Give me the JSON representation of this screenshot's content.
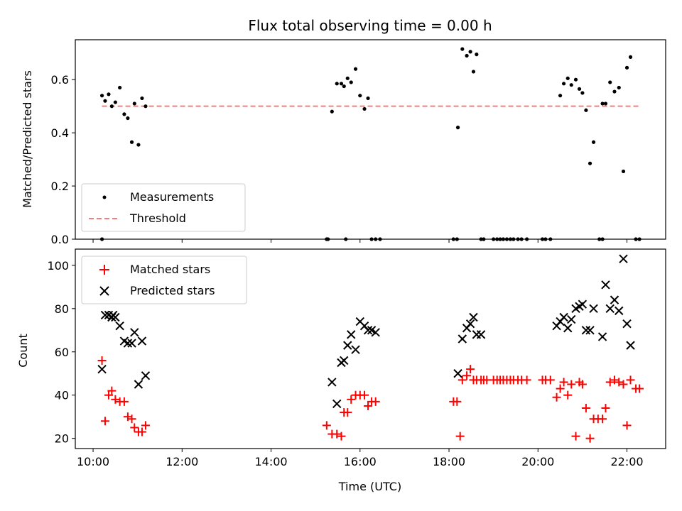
{
  "chart_data": {
    "title": "Flux total observing time = 0.00 h",
    "xlabel": "Time (UTC)",
    "xlim_hours": [
      9.6,
      22.87
    ],
    "x_ticks": [
      {
        "value": 10,
        "label": "10:00"
      },
      {
        "value": 12,
        "label": "12:00"
      },
      {
        "value": 14,
        "label": "14:00"
      },
      {
        "value": 16,
        "label": "16:00"
      },
      {
        "value": 18,
        "label": "18:00"
      },
      {
        "value": 20,
        "label": "20:00"
      },
      {
        "value": 22,
        "label": "22:00"
      }
    ],
    "top": {
      "type": "scatter",
      "ylabel": "Matched/Predicted stars",
      "ylim": [
        0,
        0.75
      ],
      "y_ticks": [
        {
          "value": 0,
          "label": "0.0"
        },
        {
          "value": 0.2,
          "label": "0.2"
        },
        {
          "value": 0.4,
          "label": "0.4"
        },
        {
          "value": 0.6,
          "label": "0.6"
        }
      ],
      "legend_position": "lower-left",
      "series": [
        {
          "name": "Measurements",
          "color": "#000000",
          "x": [
            10.2,
            10.27,
            10.35,
            10.42,
            10.5,
            10.6,
            10.7,
            10.78,
            10.87,
            10.93,
            11.02,
            11.1,
            11.18,
            10.2,
            15.25,
            15.37,
            15.48,
            15.58,
            15.64,
            15.72,
            15.8,
            15.9,
            16.0,
            16.1,
            16.18,
            16.26,
            16.35,
            15.28,
            15.68,
            16.45,
            18.2,
            18.3,
            18.4,
            18.48,
            18.55,
            18.62,
            18.72,
            18.1,
            18.18,
            18.78,
            19.0,
            19.08,
            19.15,
            19.22,
            19.3,
            19.38,
            19.45,
            19.55,
            19.63,
            19.75,
            20.5,
            20.58,
            20.67,
            20.75,
            20.85,
            20.93,
            21.0,
            21.08,
            21.17,
            21.25,
            21.45,
            21.52,
            21.62,
            21.72,
            21.82,
            21.92,
            22.0,
            22.08,
            20.1,
            20.17,
            20.28,
            21.38,
            21.45,
            22.2,
            22.28
          ],
          "y": [
            0.54,
            0.52,
            0.545,
            0.5,
            0.515,
            0.57,
            0.47,
            0.455,
            0.365,
            0.51,
            0.355,
            0.53,
            0.5,
            0.0,
            0.0,
            0.48,
            0.585,
            0.585,
            0.575,
            0.605,
            0.59,
            0.64,
            0.54,
            0.49,
            0.53,
            0.0,
            0.0,
            0.0,
            0.0,
            0.0,
            0.42,
            0.715,
            0.69,
            0.705,
            0.63,
            0.695,
            0.0,
            0.0,
            0.0,
            0.0,
            0.0,
            0.0,
            0.0,
            0.0,
            0.0,
            0.0,
            0.0,
            0.0,
            0.0,
            0.0,
            0.54,
            0.585,
            0.605,
            0.58,
            0.6,
            0.565,
            0.55,
            0.485,
            0.285,
            0.365,
            0.51,
            0.51,
            0.59,
            0.555,
            0.57,
            0.255,
            0.645,
            0.685,
            0.0,
            0.0,
            0.0,
            0.0,
            0.0,
            0.0,
            0.0
          ]
        },
        {
          "name": "Threshold",
          "color": "#f08080",
          "style": "dashed",
          "x": [
            10.2,
            22.28
          ],
          "y": [
            0.5,
            0.5
          ]
        }
      ]
    },
    "bottom": {
      "type": "scatter",
      "ylabel": "Count",
      "ylim": [
        15.3,
        107.5
      ],
      "y_ticks": [
        {
          "value": 20,
          "label": "20"
        },
        {
          "value": 40,
          "label": "40"
        },
        {
          "value": 60,
          "label": "60"
        },
        {
          "value": 80,
          "label": "80"
        },
        {
          "value": 100,
          "label": "100"
        }
      ],
      "legend_position": "upper-left",
      "series": [
        {
          "name": "Matched stars",
          "marker": "plus",
          "color": "#ff0000",
          "x": [
            10.2,
            10.27,
            10.35,
            10.42,
            10.5,
            10.6,
            10.7,
            10.78,
            10.87,
            10.93,
            11.02,
            11.1,
            11.18,
            15.25,
            15.37,
            15.48,
            15.58,
            15.64,
            15.72,
            15.8,
            15.9,
            16.0,
            16.1,
            16.18,
            16.26,
            16.35,
            18.1,
            18.18,
            18.25,
            18.3,
            18.4,
            18.48,
            18.55,
            18.62,
            18.72,
            18.78,
            18.85,
            19.0,
            19.08,
            19.15,
            19.22,
            19.3,
            19.38,
            19.45,
            19.55,
            19.63,
            19.75,
            20.1,
            20.17,
            20.28,
            20.42,
            20.5,
            20.58,
            20.67,
            20.75,
            20.85,
            20.93,
            21.0,
            21.08,
            21.17,
            21.25,
            21.35,
            21.45,
            21.52,
            21.62,
            21.72,
            21.82,
            21.92,
            22.0,
            22.08,
            22.2,
            22.28
          ],
          "y": [
            56,
            28,
            40,
            42,
            38,
            37,
            37,
            30,
            29,
            25,
            23,
            23,
            26,
            26,
            22,
            22,
            21,
            32,
            32,
            38,
            40,
            40,
            40,
            35,
            37,
            37,
            37,
            37,
            21,
            47,
            49,
            52,
            47,
            47,
            47,
            47,
            47,
            47,
            47,
            47,
            47,
            47,
            47,
            47,
            47,
            47,
            47,
            47,
            47,
            47,
            39,
            43,
            46,
            40,
            45,
            21,
            46,
            45,
            34,
            20,
            29,
            29,
            29,
            34,
            46,
            47,
            46,
            45,
            26,
            47,
            43,
            43
          ]
        },
        {
          "name": "Predicted stars",
          "marker": "x",
          "color": "#000000",
          "x": [
            10.2,
            10.27,
            10.35,
            10.42,
            10.5,
            10.6,
            10.7,
            10.78,
            10.87,
            10.93,
            11.02,
            11.1,
            11.18,
            10.45,
            15.37,
            15.48,
            15.58,
            15.64,
            15.72,
            15.8,
            15.9,
            16.0,
            16.1,
            16.18,
            16.26,
            16.35,
            18.2,
            18.3,
            18.4,
            18.48,
            18.55,
            18.62,
            18.72,
            20.42,
            20.5,
            20.58,
            20.67,
            20.75,
            20.85,
            20.93,
            21.0,
            21.08,
            21.17,
            21.25,
            21.45,
            21.52,
            21.62,
            21.72,
            21.82,
            21.92,
            22.0,
            22.08
          ],
          "y": [
            52,
            77,
            77,
            76,
            76,
            72,
            65,
            64,
            64,
            69,
            45,
            65,
            49,
            77,
            46,
            36,
            55,
            56,
            63,
            68,
            61,
            74,
            72,
            70,
            70,
            69,
            50,
            66,
            71,
            73,
            76,
            68,
            68,
            72,
            74,
            76,
            71,
            75,
            80,
            81,
            82,
            70,
            70,
            80,
            67,
            91,
            80,
            84,
            79,
            103,
            73,
            63
          ]
        }
      ]
    }
  }
}
